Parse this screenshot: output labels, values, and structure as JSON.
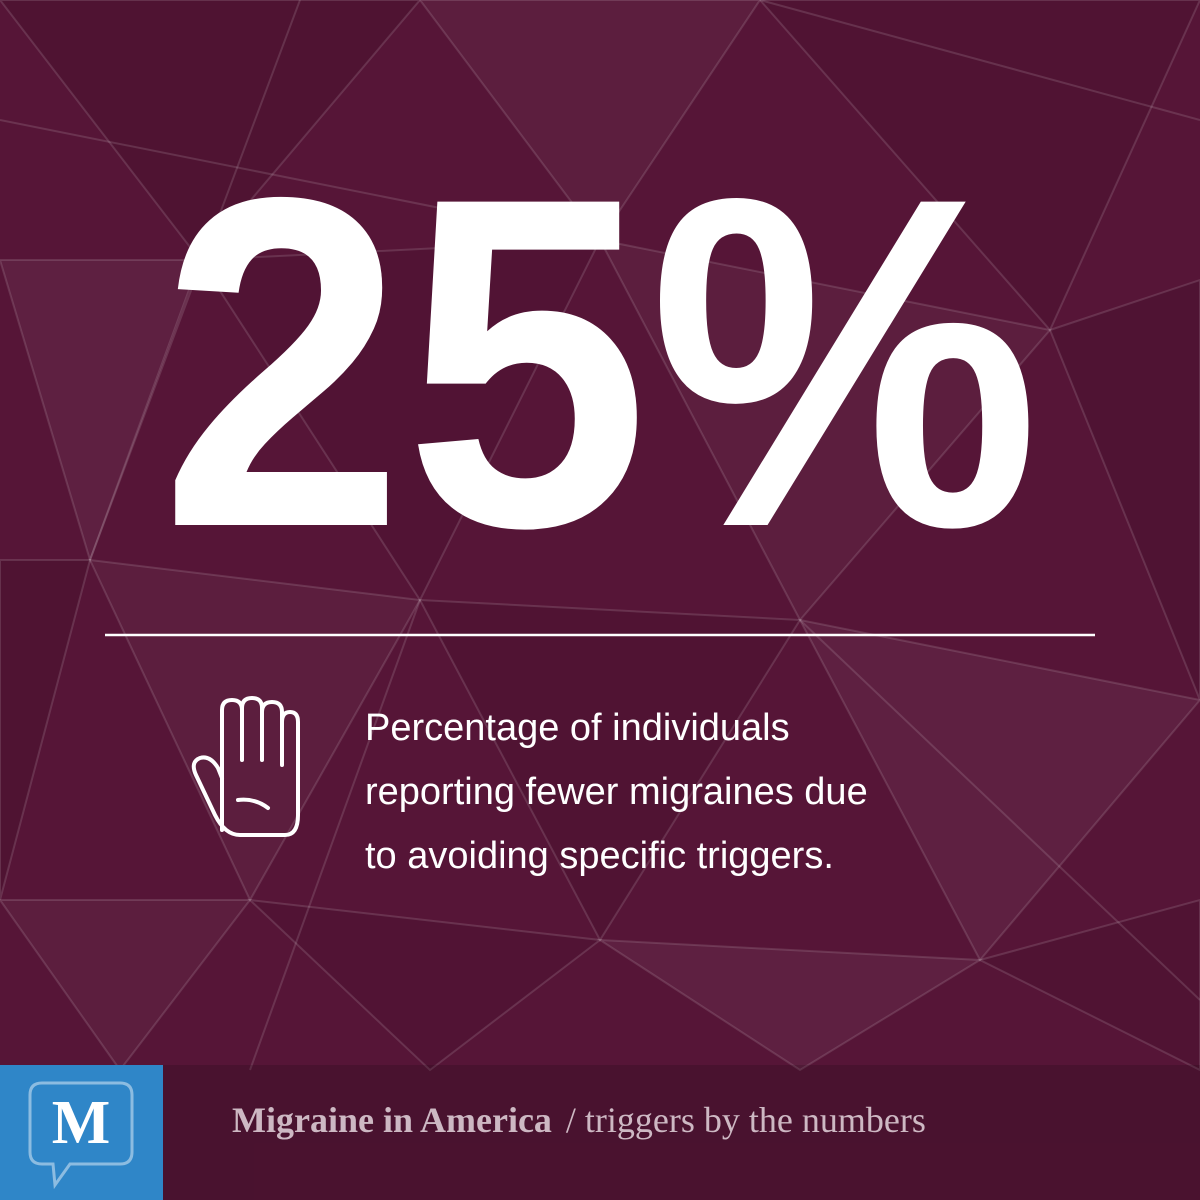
{
  "stat": "25%",
  "description": {
    "lines": [
      "Percentage of individuals",
      "reporting fewer migraines due",
      "to avoiding specific triggers."
    ]
  },
  "footer": {
    "logo": "M",
    "title": "Migraine in America",
    "subtitle": "/ triggers by the numbers"
  }
}
